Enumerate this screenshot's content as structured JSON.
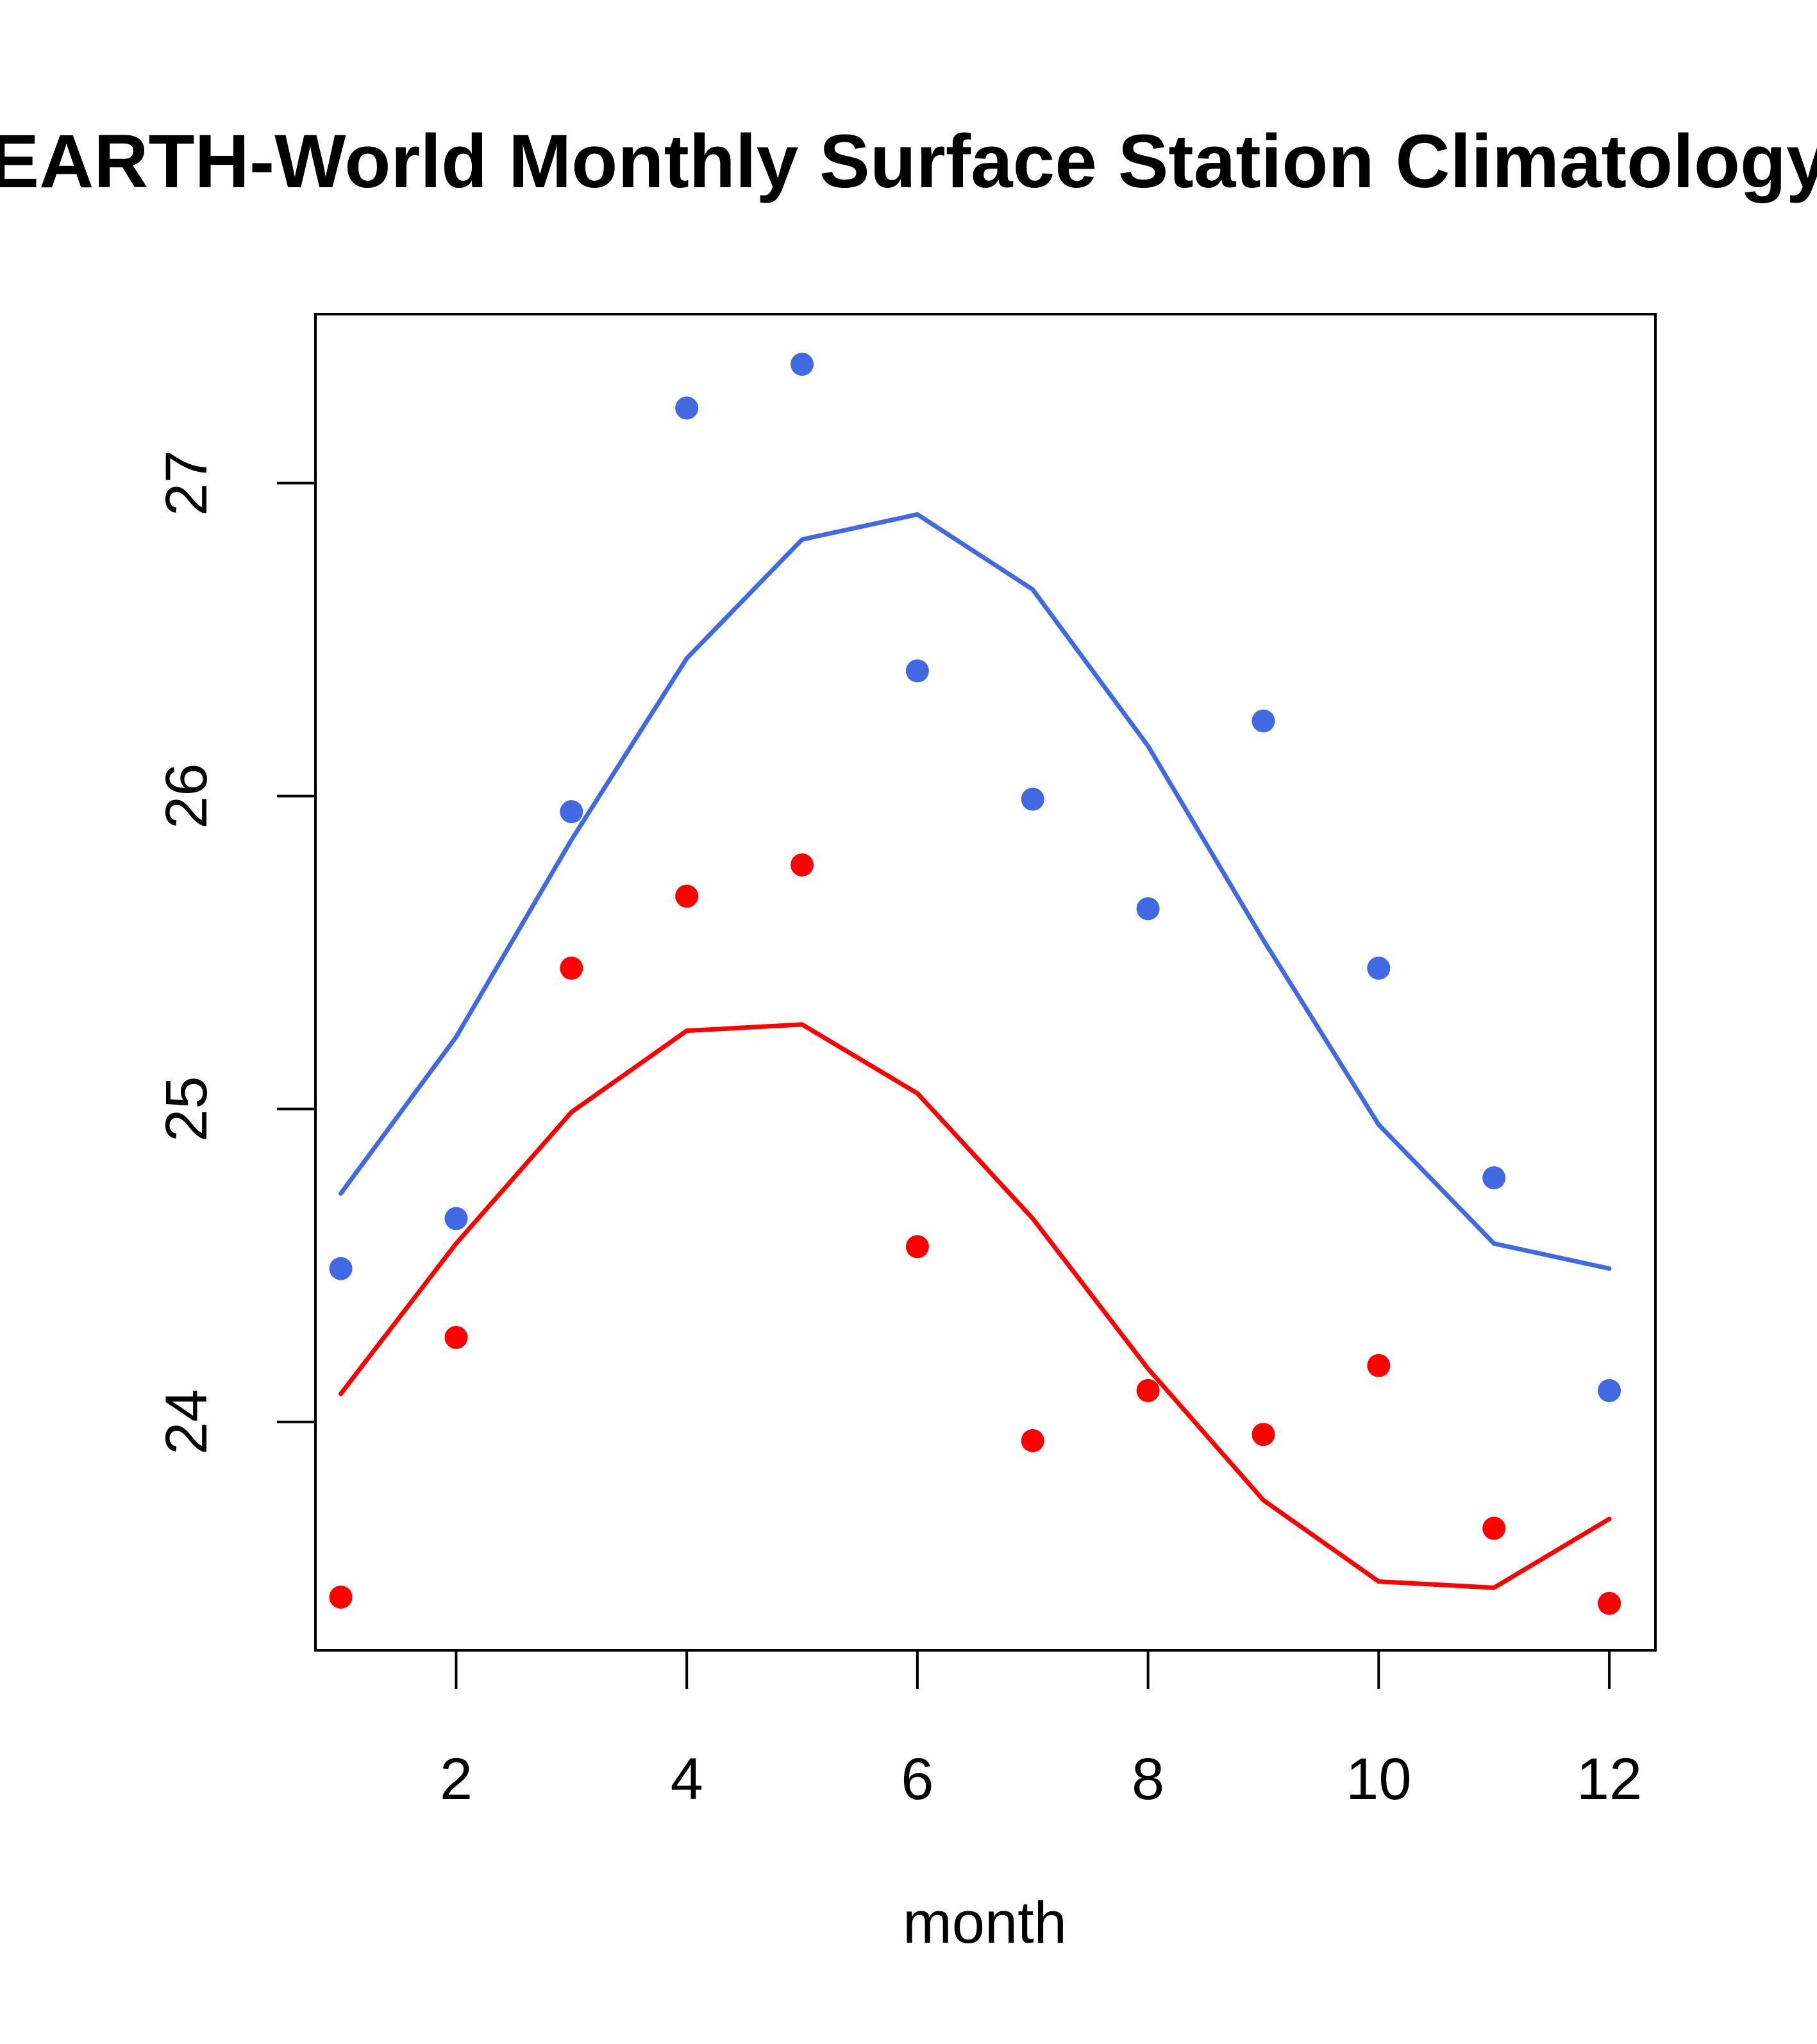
{
  "chart_data": {
    "type": "scatter",
    "title": "EARTH-World Monthly Surface Station Climatology",
    "xlabel": "month",
    "ylabel": "",
    "xlim": [
      0.78,
      12.4
    ],
    "ylim": [
      23.27,
      27.54
    ],
    "x_ticks": [
      2,
      4,
      6,
      8,
      10,
      12
    ],
    "x_tick_labels": [
      "2",
      "4",
      "6",
      "8",
      "10",
      "12"
    ],
    "y_ticks": [
      24,
      25,
      26,
      27
    ],
    "y_tick_labels": [
      "24",
      "25",
      "26",
      "27"
    ],
    "grid": false,
    "legend": null,
    "x": [
      1,
      2,
      3,
      4,
      5,
      6,
      7,
      8,
      9,
      10,
      11,
      12
    ],
    "series": [
      {
        "name": "blue points",
        "kind": "points",
        "color": "#4169E1",
        "values": [
          24.49,
          24.65,
          25.95,
          27.24,
          27.38,
          26.4,
          25.99,
          25.64,
          26.24,
          25.45,
          24.78,
          24.1
        ]
      },
      {
        "name": "blue line",
        "kind": "line",
        "color": "#4169E1",
        "values": [
          24.73,
          25.23,
          25.86,
          26.44,
          26.82,
          26.9,
          26.66,
          26.16,
          25.54,
          24.95,
          24.57,
          24.49
        ]
      },
      {
        "name": "red points",
        "kind": "points",
        "color": "#FF0000",
        "values": [
          23.44,
          24.27,
          25.45,
          25.68,
          25.78,
          24.56,
          23.94,
          24.1,
          23.96,
          24.18,
          23.66,
          23.42
        ]
      },
      {
        "name": "red line",
        "kind": "line",
        "color": "#FF0000",
        "values": [
          24.09,
          24.57,
          24.99,
          25.25,
          25.27,
          25.05,
          24.65,
          24.17,
          23.75,
          23.49,
          23.47,
          23.69
        ]
      }
    ]
  }
}
